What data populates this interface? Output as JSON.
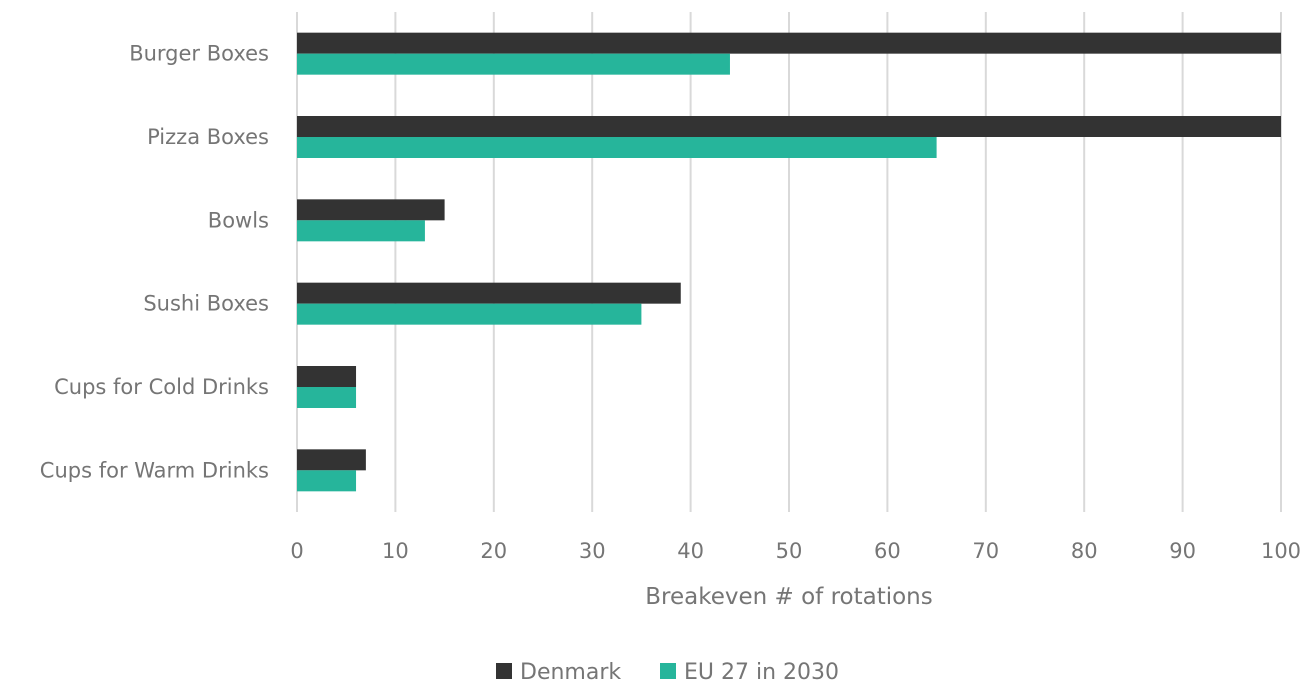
{
  "chart_data": {
    "type": "bar",
    "orientation": "horizontal",
    "categories": [
      "Burger Boxes",
      "Pizza Boxes",
      "Bowls",
      "Sushi Boxes",
      "Cups for Cold Drinks",
      "Cups for Warm Drinks"
    ],
    "series": [
      {
        "name": "Denmark",
        "color": "#333333",
        "values": [
          100,
          100,
          15,
          39,
          6,
          7
        ]
      },
      {
        "name": "EU 27 in 2030",
        "color": "#26b59b",
        "values": [
          44,
          65,
          13,
          35,
          6,
          6
        ]
      }
    ],
    "xlabel": "Breakeven # of rotations",
    "ylabel": "",
    "xlim": [
      0,
      100
    ],
    "xticks": [
      "0",
      "10",
      "20",
      "30",
      "40",
      "50",
      "60",
      "70",
      "80",
      "90",
      "100"
    ],
    "grid": "vertical",
    "legend_position": "bottom"
  }
}
